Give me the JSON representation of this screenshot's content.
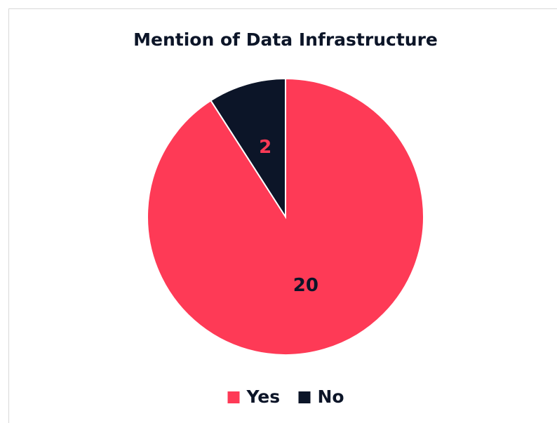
{
  "chart_data": {
    "type": "pie",
    "title": "Mention of Data Infrastructure",
    "categories": [
      "Yes",
      "No"
    ],
    "values": [
      20,
      2
    ],
    "colors": [
      "#fe3a56",
      "#0c1528"
    ],
    "label_colors": [
      "#0c1528",
      "#fe3a56"
    ],
    "legend": "bottom"
  }
}
